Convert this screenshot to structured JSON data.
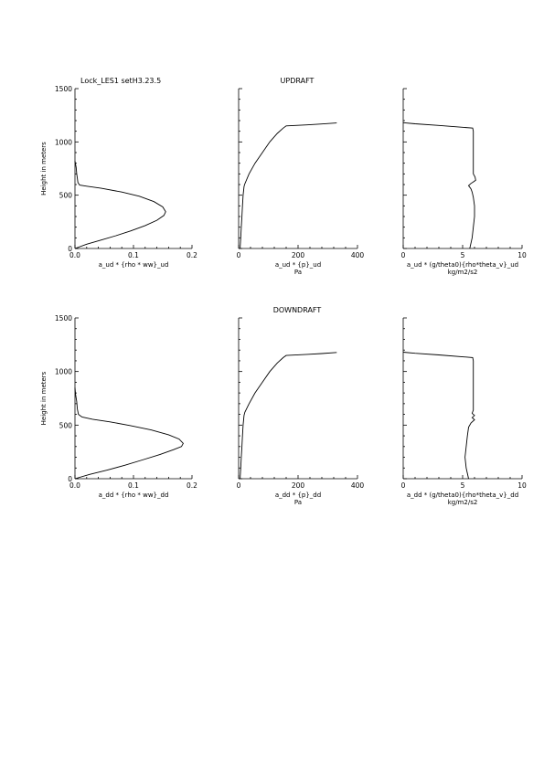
{
  "header": {
    "run_label": "Lock_LES1 setH3.23.5",
    "ylabel": "Height in meters"
  },
  "chart_data": [
    {
      "type": "line",
      "row_title": "UPDRAFT",
      "xlabel": "a_ud * {rho * ww}_ud",
      "ylabel": "Height in meters",
      "xlim": [
        0,
        0.2
      ],
      "ylim": [
        0,
        1500
      ],
      "xticks": [
        "0.0",
        "0.1",
        "0.2"
      ],
      "yticks": [
        "0",
        "500",
        "1000",
        "1500"
      ],
      "series": [
        {
          "points": [
            [
              0.0,
              0
            ],
            [
              0.02,
              40
            ],
            [
              0.045,
              80
            ],
            [
              0.07,
              120
            ],
            [
              0.095,
              165
            ],
            [
              0.12,
              215
            ],
            [
              0.14,
              265
            ],
            [
              0.152,
              310
            ],
            [
              0.155,
              345
            ],
            [
              0.15,
              390
            ],
            [
              0.135,
              440
            ],
            [
              0.11,
              490
            ],
            [
              0.08,
              530
            ],
            [
              0.045,
              565
            ],
            [
              0.02,
              585
            ],
            [
              0.008,
              595
            ],
            [
              0.005,
              620
            ],
            [
              0.004,
              660
            ],
            [
              0.003,
              700
            ],
            [
              0.002,
              760
            ],
            [
              0.0,
              820
            ]
          ]
        }
      ]
    },
    {
      "type": "line",
      "xlabel": "a_ud * {p}_ud",
      "xlabel2": "Pa",
      "ylabel": "",
      "xlim": [
        0,
        400
      ],
      "ylim": [
        0,
        1500
      ],
      "xticks": [
        "0",
        "200",
        "400"
      ],
      "series": [
        {
          "points": [
            [
              5,
              0
            ],
            [
              7,
              100
            ],
            [
              9,
              200
            ],
            [
              11,
              300
            ],
            [
              13,
              400
            ],
            [
              15,
              500
            ],
            [
              18,
              580
            ],
            [
              20,
              600
            ],
            [
              35,
              700
            ],
            [
              55,
              800
            ],
            [
              80,
              900
            ],
            [
              105,
              1000
            ],
            [
              130,
              1080
            ],
            [
              150,
              1130
            ],
            [
              160,
              1150
            ],
            [
              230,
              1160
            ],
            [
              280,
              1168
            ],
            [
              330,
              1178
            ]
          ]
        }
      ]
    },
    {
      "type": "line",
      "xlabel": "a_ud * (g/theta0){rho*theta_v}_ud",
      "xlabel2": "kg/m2/s2",
      "ylabel": "",
      "xlim": [
        0,
        10
      ],
      "ylim": [
        0,
        1500
      ],
      "xticks": [
        "0",
        "5",
        "10"
      ],
      "series": [
        {
          "points": [
            [
              5.6,
              0
            ],
            [
              5.7,
              50
            ],
            [
              5.8,
              100
            ],
            [
              5.9,
              200
            ],
            [
              6.0,
              300
            ],
            [
              6.0,
              400
            ],
            [
              5.9,
              480
            ],
            [
              5.8,
              530
            ],
            [
              5.7,
              560
            ],
            [
              5.5,
              590
            ],
            [
              5.7,
              610
            ],
            [
              5.9,
              625
            ],
            [
              6.1,
              640
            ],
            [
              6.05,
              670
            ],
            [
              5.9,
              700
            ],
            [
              5.9,
              800
            ],
            [
              5.9,
              900
            ],
            [
              5.9,
              1000
            ],
            [
              5.9,
              1100
            ],
            [
              5.85,
              1130
            ],
            [
              3.0,
              1155
            ],
            [
              1.0,
              1170
            ],
            [
              0.0,
              1180
            ]
          ]
        }
      ]
    },
    {
      "type": "line",
      "row_title": "DOWNDRAFT",
      "xlabel": "a_dd * {rho * ww}_dd",
      "ylabel": "Height in meters",
      "xlim": [
        0,
        0.2
      ],
      "ylim": [
        0,
        1500
      ],
      "xticks": [
        "0.0",
        "0.1",
        "0.2"
      ],
      "yticks": [
        "0",
        "500",
        "1000",
        "1500"
      ],
      "series": [
        {
          "points": [
            [
              0.0,
              0
            ],
            [
              0.025,
              40
            ],
            [
              0.055,
              80
            ],
            [
              0.085,
              125
            ],
            [
              0.115,
              175
            ],
            [
              0.145,
              225
            ],
            [
              0.168,
              270
            ],
            [
              0.182,
              300
            ],
            [
              0.185,
              330
            ],
            [
              0.178,
              370
            ],
            [
              0.16,
              410
            ],
            [
              0.13,
              455
            ],
            [
              0.095,
              495
            ],
            [
              0.06,
              530
            ],
            [
              0.03,
              555
            ],
            [
              0.012,
              575
            ],
            [
              0.006,
              600
            ],
            [
              0.004,
              650
            ],
            [
              0.003,
              720
            ],
            [
              0.001,
              790
            ],
            [
              0.0,
              850
            ]
          ]
        }
      ]
    },
    {
      "type": "line",
      "xlabel": "a_dd * {p}_dd",
      "xlabel2": "Pa",
      "ylabel": "",
      "xlim": [
        0,
        400
      ],
      "ylim": [
        0,
        1500
      ],
      "xticks": [
        "0",
        "200",
        "400"
      ],
      "series": [
        {
          "points": [
            [
              5,
              0
            ],
            [
              7,
              100
            ],
            [
              9,
              200
            ],
            [
              11,
              300
            ],
            [
              13,
              400
            ],
            [
              15,
              500
            ],
            [
              18,
              590
            ],
            [
              21,
              620
            ],
            [
              35,
              700
            ],
            [
              55,
              800
            ],
            [
              80,
              900
            ],
            [
              105,
              1000
            ],
            [
              130,
              1080
            ],
            [
              150,
              1130
            ],
            [
              160,
              1150
            ],
            [
              230,
              1160
            ],
            [
              280,
              1168
            ],
            [
              330,
              1178
            ]
          ]
        }
      ]
    },
    {
      "type": "line",
      "xlabel": "a_dd * (g/theta0){rho*theta_v}_dd",
      "xlabel2": "kg/m2/s2",
      "ylabel": "",
      "xlim": [
        0,
        10
      ],
      "ylim": [
        0,
        1500
      ],
      "xticks": [
        "0",
        "5",
        "10"
      ],
      "series": [
        {
          "points": [
            [
              5.5,
              0
            ],
            [
              5.4,
              50
            ],
            [
              5.3,
              100
            ],
            [
              5.2,
              200
            ],
            [
              5.3,
              300
            ],
            [
              5.4,
              400
            ],
            [
              5.5,
              480
            ],
            [
              5.7,
              520
            ],
            [
              6.0,
              550
            ],
            [
              5.8,
              570
            ],
            [
              6.0,
              590
            ],
            [
              5.8,
              610
            ],
            [
              5.9,
              640
            ],
            [
              5.9,
              700
            ],
            [
              5.9,
              800
            ],
            [
              5.9,
              900
            ],
            [
              5.9,
              1000
            ],
            [
              5.9,
              1100
            ],
            [
              5.85,
              1130
            ],
            [
              3.0,
              1155
            ],
            [
              1.0,
              1170
            ],
            [
              0.0,
              1180
            ]
          ]
        }
      ]
    }
  ]
}
